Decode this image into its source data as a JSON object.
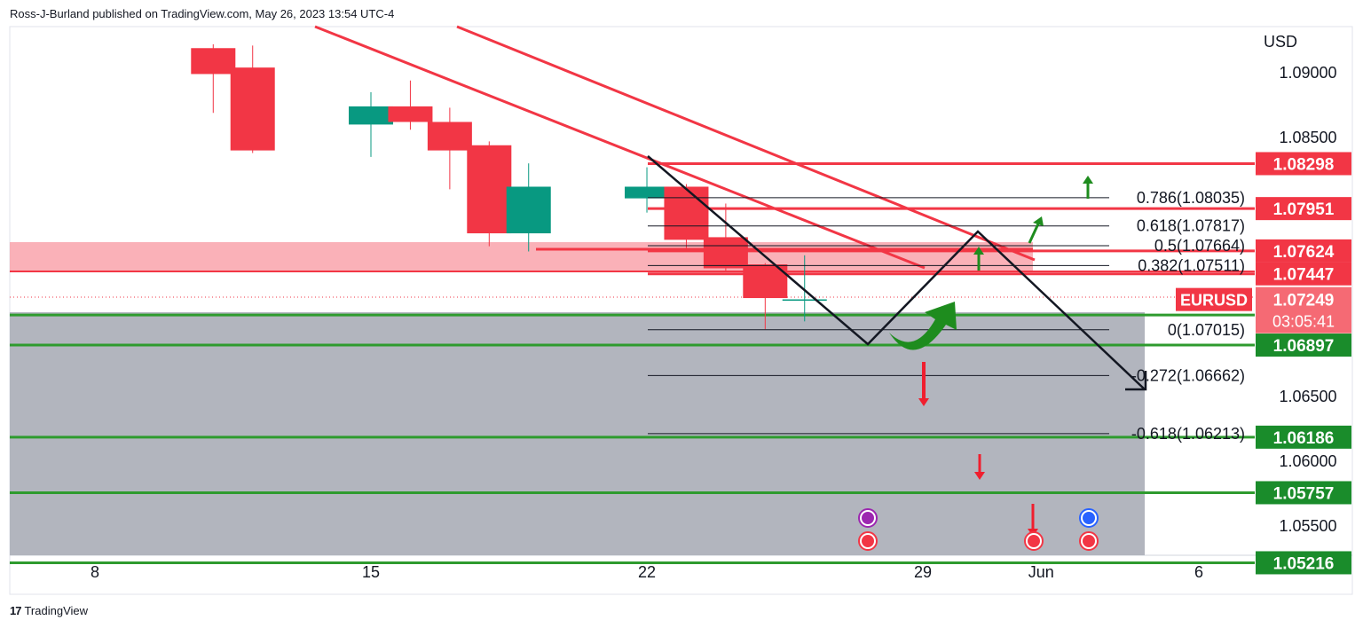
{
  "header": {
    "publisher": "Ross-J-Burland published on TradingView.com, May 26, 2023 13:54 UTC-4"
  },
  "footer": {
    "logo": "17",
    "brand": "TradingView"
  },
  "chart_data": {
    "type": "candlestick",
    "symbol": "EURUSD",
    "currency": "USD",
    "current_price": "1.07249",
    "countdown": "03:05:41",
    "y_axis_ticks": [
      "1.09000",
      "1.08500",
      "1.06500",
      "1.06000",
      "1.05500"
    ],
    "y_range": [
      1.0515,
      1.0935
    ],
    "x_axis_ticks": [
      {
        "label": "8",
        "date": "2023-05-08"
      },
      {
        "label": "15",
        "date": "2023-05-15"
      },
      {
        "label": "22",
        "date": "2023-05-22"
      },
      {
        "label": "29",
        "date": "2023-05-29"
      },
      {
        "label": "Jun",
        "date": "2023-06-01"
      },
      {
        "label": "6",
        "date": "2023-06-05"
      }
    ],
    "candles": [
      {
        "date": "2023-05-11",
        "open": 1.0919,
        "high": 1.0922,
        "low": 1.0869,
        "close": 1.0899
      },
      {
        "date": "2023-05-12",
        "open": 1.0904,
        "high": 1.0921,
        "low": 1.0838,
        "close": 1.084
      },
      {
        "date": "2023-05-15",
        "open": 1.086,
        "high": 1.0885,
        "low": 1.0835,
        "close": 1.0874
      },
      {
        "date": "2023-05-16",
        "open": 1.0874,
        "high": 1.0894,
        "low": 1.0856,
        "close": 1.0862
      },
      {
        "date": "2023-05-17",
        "open": 1.0862,
        "high": 1.0873,
        "low": 1.081,
        "close": 1.084
      },
      {
        "date": "2023-05-18",
        "open": 1.0844,
        "high": 1.0847,
        "low": 1.0766,
        "close": 1.0776
      },
      {
        "date": "2023-05-19",
        "open": 1.0776,
        "high": 1.083,
        "low": 1.0762,
        "close": 1.0812
      },
      {
        "date": "2023-05-22",
        "open": 1.0803,
        "high": 1.0827,
        "low": 1.0792,
        "close": 1.0812
      },
      {
        "date": "2023-05-23",
        "open": 1.0812,
        "high": 1.0814,
        "low": 1.0762,
        "close": 1.0771
      },
      {
        "date": "2023-05-24",
        "open": 1.0773,
        "high": 1.0799,
        "low": 1.0746,
        "close": 1.0749
      },
      {
        "date": "2023-05-25",
        "open": 1.0752,
        "high": 1.0753,
        "low": 1.0702,
        "close": 1.0726
      },
      {
        "date": "2023-05-26",
        "open": 1.0725,
        "high": 1.0759,
        "low": 1.0708,
        "close": 1.0725
      }
    ],
    "price_labels": [
      {
        "value": "1.08298",
        "color": "#f23645"
      },
      {
        "value": "1.07951",
        "color": "#f23645"
      },
      {
        "value": "1.07624",
        "color": "#f23645"
      },
      {
        "value": "1.07447",
        "color": "#f23645"
      },
      {
        "value": "1.07129",
        "color": "#1a8c2b"
      },
      {
        "value": "1.06897",
        "color": "#1a8c2b"
      },
      {
        "value": "1.06186",
        "color": "#1a8c2b"
      },
      {
        "value": "1.05757",
        "color": "#1a8c2b"
      },
      {
        "value": "1.05216",
        "color": "#1a8c2b"
      }
    ],
    "fib_levels": [
      {
        "label": "0.786(1.08035)",
        "price": 1.08035
      },
      {
        "label": "0.618(1.07817)",
        "price": 1.07817
      },
      {
        "label": "0.5(1.07664)",
        "price": 1.07664
      },
      {
        "label": "0.382(1.07511)",
        "price": 1.07511
      },
      {
        "label": "0(1.07015)",
        "price": 1.07015
      },
      {
        "label": "-0.272(1.06662)",
        "price": 1.06662
      },
      {
        "label": "-0.618(1.06213)",
        "price": 1.06213
      }
    ],
    "colors": {
      "bull": "#089981",
      "bear": "#f23645",
      "resistance": "#f23645",
      "support": "#2e9b2e",
      "zone_fill": "#f9a3ab",
      "gray_zone": "#b2b5be",
      "arrow_green": "#1e8c1e",
      "arrow_red": "#f01e2e"
    }
  }
}
